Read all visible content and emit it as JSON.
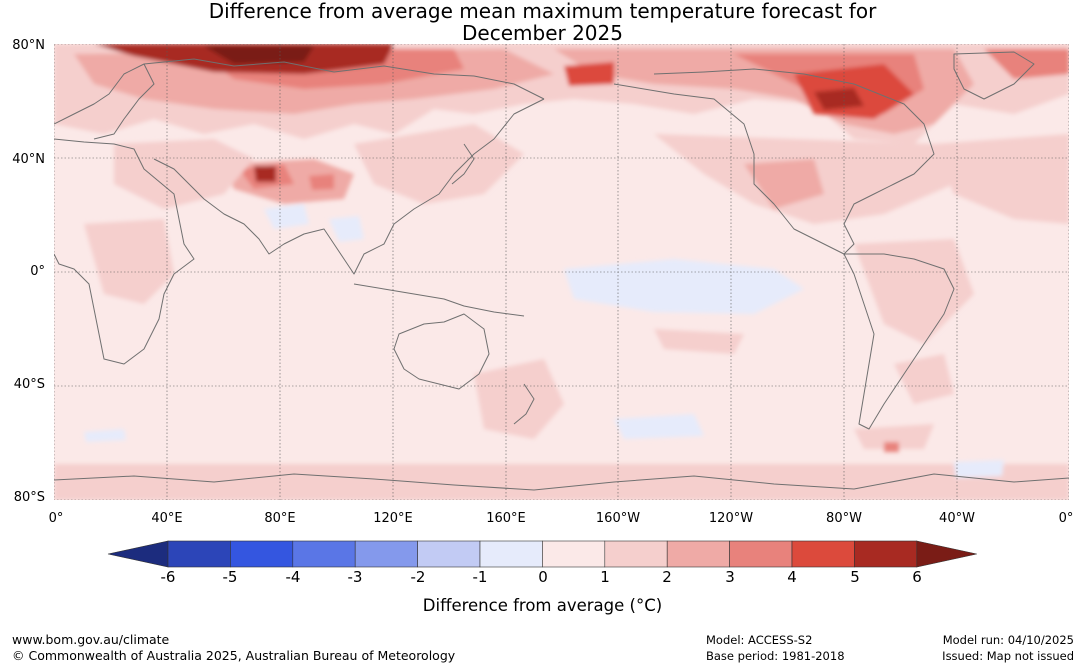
{
  "title": {
    "line1": "Difference from average mean maximum temperature forecast for",
    "line2": "December 2025"
  },
  "lat_labels": [
    "80°N",
    "40°N",
    "0°",
    "40°S",
    "80°S"
  ],
  "lon_labels": [
    "0°",
    "40°E",
    "80°E",
    "120°E",
    "160°E",
    "160°W",
    "120°W",
    "80°W",
    "40°W",
    "0°"
  ],
  "colorbar": {
    "title": "Difference from average (°C)",
    "tick_labels": [
      "-6",
      "-5",
      "-4",
      "-3",
      "-2",
      "-1",
      "0",
      "1",
      "2",
      "3",
      "4",
      "5",
      "6"
    ],
    "colors": [
      "#1c2c7e",
      "#2c45b8",
      "#3456e0",
      "#5a76e6",
      "#8499ec",
      "#c2cbf4",
      "#e6ebfb",
      "#fbe9e8",
      "#f5cfcd",
      "#efaaa6",
      "#e8827c",
      "#dc4a3c",
      "#a82a22",
      "#7a1c16"
    ]
  },
  "footer": {
    "website": "www.bom.gov.au/climate",
    "copyright": "© Commonwealth of Australia 2025, Australian Bureau of Meteorology",
    "model": "Model: ACCESS-S2",
    "base_period": "Base period: 1981-2018",
    "model_run": "Model run: 04/10/2025",
    "issued": "Issued: Map not issued"
  }
}
